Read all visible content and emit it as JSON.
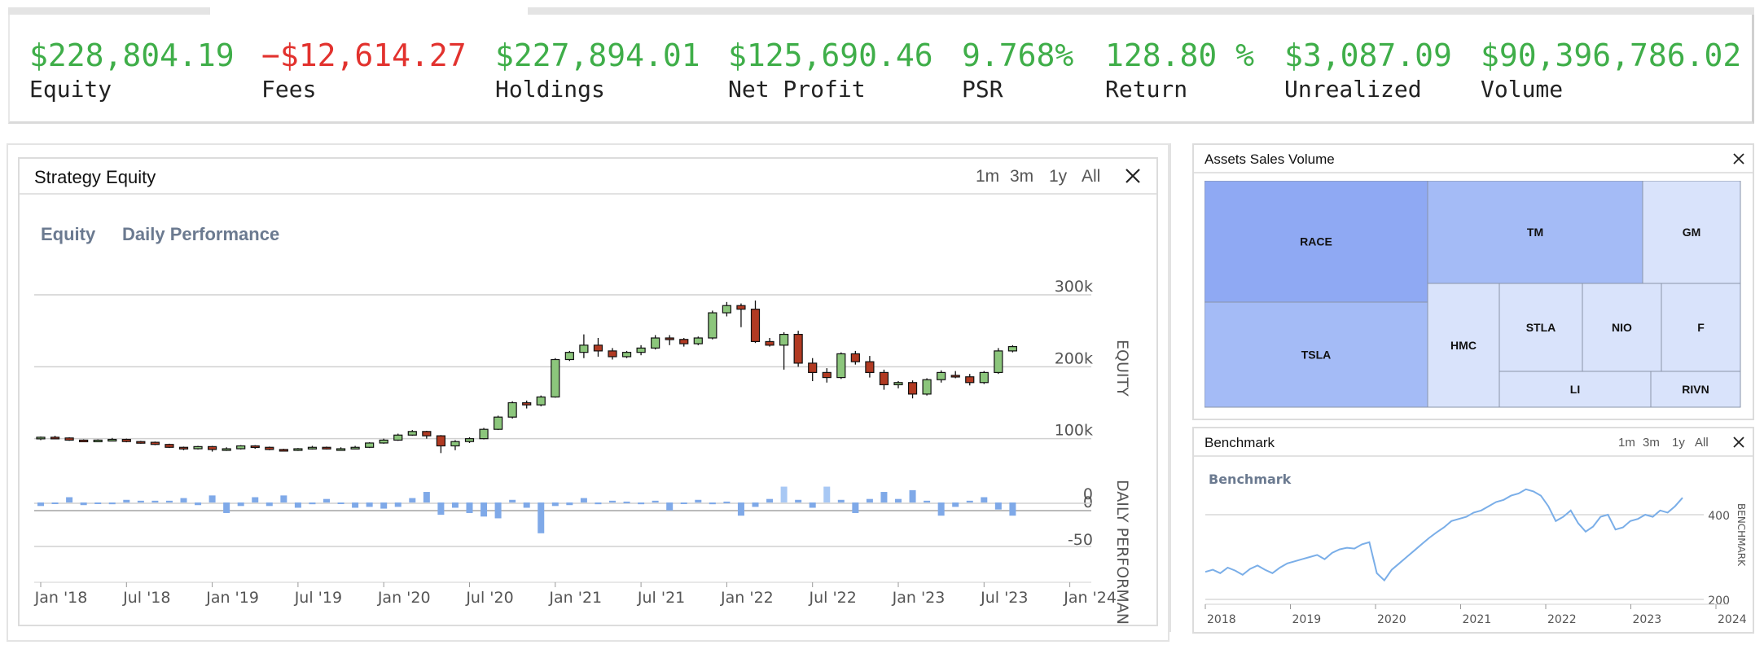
{
  "stats": [
    {
      "value": "$228,804.19",
      "label": "Equity",
      "negative": false
    },
    {
      "value": "−$12,614.27",
      "label": "Fees",
      "negative": true
    },
    {
      "value": "$227,894.01",
      "label": "Holdings",
      "negative": false
    },
    {
      "value": "$125,690.46",
      "label": "Net Profit",
      "negative": false
    },
    {
      "value": "9.768%",
      "label": "PSR",
      "negative": false
    },
    {
      "value": "128.80 %",
      "label": "Return",
      "negative": false
    },
    {
      "value": "$3,087.09",
      "label": "Unrealized",
      "negative": false
    },
    {
      "value": "$90,396,786.02",
      "label": "Volume",
      "negative": false
    }
  ],
  "equity_panel": {
    "title": "Strategy Equity",
    "ranges": [
      "1m",
      "3m",
      "1y",
      "All"
    ],
    "tabs": [
      "Equity",
      "Daily Performance"
    ]
  },
  "assets_panel": {
    "title": "Assets Sales Volume",
    "tiles": [
      "RACE",
      "TSLA",
      "TM",
      "GM",
      "HMC",
      "STLA",
      "NIO",
      "F",
      "LI",
      "RIVN"
    ]
  },
  "benchmark_panel": {
    "title": "Benchmark",
    "ranges": [
      "1m",
      "3m",
      "1y",
      "All"
    ]
  },
  "colors": {
    "positive": "#3fae49",
    "negative": "#e2322e",
    "candle_up": "#8cc67c",
    "candle_down": "#b13a22",
    "bar": "#7fa9e8",
    "bar_light": "#a8c8f4",
    "treemap_dark": "#8fa9f3",
    "treemap_mid": "#a4bbf6",
    "treemap_light": "#d9e3fb",
    "line": "#7aaee8"
  },
  "chart_data": [
    {
      "type": "candlestick",
      "title": "",
      "ylabel": "EQUITY",
      "ylim": [
        0,
        300000
      ],
      "yticks": [
        "300k",
        "200k",
        "100k",
        "0"
      ],
      "xticks": [
        "Jan '18",
        "Jul '18",
        "Jan '19",
        "Jul '19",
        "Jan '20",
        "Jul '20",
        "Jan '21",
        "Jul '21",
        "Jan '22",
        "Jul '22",
        "Jan '23",
        "Jul '23",
        "Jan '24"
      ],
      "x_start": "2017-12",
      "candles": [
        [
          100000,
          102000,
          98000,
          103000
        ],
        [
          102000,
          101000,
          100000,
          104000
        ],
        [
          101000,
          98000,
          97000,
          102000
        ],
        [
          98000,
          97000,
          96000,
          99000
        ],
        [
          97000,
          98000,
          96000,
          99000
        ],
        [
          98000,
          99000,
          97000,
          101000
        ],
        [
          99000,
          96000,
          95000,
          100000
        ],
        [
          96000,
          95000,
          93000,
          97000
        ],
        [
          95000,
          92000,
          91000,
          96000
        ],
        [
          92000,
          88000,
          87000,
          93000
        ],
        [
          88000,
          86000,
          84000,
          89000
        ],
        [
          86000,
          89000,
          85000,
          90000
        ],
        [
          89000,
          85000,
          82000,
          90000
        ],
        [
          85000,
          86000,
          83000,
          88000
        ],
        [
          86000,
          90000,
          85000,
          91000
        ],
        [
          90000,
          88000,
          86000,
          91000
        ],
        [
          88000,
          85000,
          84000,
          89000
        ],
        [
          85000,
          84000,
          83000,
          86000
        ],
        [
          84000,
          86000,
          83000,
          87000
        ],
        [
          86000,
          88000,
          85000,
          90000
        ],
        [
          88000,
          86000,
          85000,
          89000
        ],
        [
          86000,
          86000,
          85000,
          88000
        ],
        [
          86000,
          88000,
          86000,
          90000
        ],
        [
          88000,
          94000,
          87000,
          95000
        ],
        [
          94000,
          98000,
          93000,
          100000
        ],
        [
          98000,
          105000,
          97000,
          107000
        ],
        [
          105000,
          110000,
          104000,
          112000
        ],
        [
          110000,
          104000,
          100000,
          111000
        ],
        [
          104000,
          90000,
          80000,
          105000
        ],
        [
          90000,
          96000,
          84000,
          98000
        ],
        [
          96000,
          100000,
          94000,
          102000
        ],
        [
          100000,
          113000,
          99000,
          115000
        ],
        [
          113000,
          130000,
          112000,
          132000
        ],
        [
          130000,
          150000,
          128000,
          152000
        ],
        [
          150000,
          147000,
          142000,
          153000
        ],
        [
          147000,
          158000,
          145000,
          160000
        ],
        [
          158000,
          210000,
          157000,
          212000
        ],
        [
          210000,
          220000,
          208000,
          222000
        ],
        [
          220000,
          230000,
          212000,
          245000
        ],
        [
          230000,
          222000,
          214000,
          240000
        ],
        [
          222000,
          214000,
          210000,
          226000
        ],
        [
          214000,
          220000,
          212000,
          222000
        ],
        [
          220000,
          226000,
          216000,
          230000
        ],
        [
          226000,
          240000,
          224000,
          244000
        ],
        [
          240000,
          238000,
          230000,
          244000
        ],
        [
          238000,
          232000,
          228000,
          240000
        ],
        [
          232000,
          240000,
          230000,
          242000
        ],
        [
          240000,
          275000,
          238000,
          278000
        ],
        [
          275000,
          285000,
          270000,
          290000
        ],
        [
          285000,
          280000,
          255000,
          288000
        ],
        [
          280000,
          235000,
          233000,
          292000
        ],
        [
          235000,
          230000,
          228000,
          240000
        ],
        [
          230000,
          245000,
          196000,
          248000
        ],
        [
          245000,
          205000,
          200000,
          250000
        ],
        [
          205000,
          192000,
          180000,
          212000
        ],
        [
          192000,
          185000,
          178000,
          198000
        ],
        [
          185000,
          218000,
          183000,
          220000
        ],
        [
          218000,
          207000,
          203000,
          222000
        ],
        [
          207000,
          192000,
          185000,
          215000
        ],
        [
          192000,
          175000,
          168000,
          196000
        ],
        [
          175000,
          178000,
          170000,
          180000
        ],
        [
          178000,
          162000,
          156000,
          181000
        ],
        [
          162000,
          182000,
          160000,
          184000
        ],
        [
          182000,
          192000,
          178000,
          195000
        ],
        [
          188000,
          186000,
          184000,
          194000
        ],
        [
          186000,
          178000,
          174000,
          190000
        ],
        [
          178000,
          192000,
          176000,
          194000
        ],
        [
          192000,
          222000,
          190000,
          226000
        ],
        [
          222000,
          228000,
          220000,
          230000
        ]
      ],
      "daily_performance": {
        "ylabel": "DAILY PERFORMANCE",
        "yticks": [
          "0",
          "-50"
        ],
        "ylim": [
          -50,
          50
        ],
        "values": [
          4,
          0,
          -6,
          3,
          0,
          2,
          -3,
          -2,
          -2,
          -2,
          -5,
          3,
          -8,
          12,
          4,
          -6,
          4,
          -8,
          6,
          2,
          -4,
          0,
          6,
          5,
          7,
          5,
          -5,
          -12,
          14,
          6,
          12,
          16,
          18,
          -3,
          6,
          35,
          4,
          3,
          -5,
          2,
          -2,
          -1,
          2,
          -2,
          9,
          0,
          -3,
          2,
          -1,
          15,
          5,
          -4,
          -18,
          -3,
          6,
          -18,
          -3,
          12,
          -4,
          -12,
          -4,
          -14,
          -2,
          15,
          5,
          -2,
          -6,
          8,
          15
        ]
      }
    },
    {
      "type": "treemap",
      "title": "Assets Sales Volume",
      "tiles": [
        {
          "name": "RACE",
          "value": 18
        },
        {
          "name": "TSLA",
          "value": 17
        },
        {
          "name": "TM",
          "value": 14
        },
        {
          "name": "GM",
          "value": 6
        },
        {
          "name": "HMC",
          "value": 7
        },
        {
          "name": "STLA",
          "value": 6
        },
        {
          "name": "NIO",
          "value": 6
        },
        {
          "name": "F",
          "value": 6
        },
        {
          "name": "LI",
          "value": 9
        },
        {
          "name": "RIVN",
          "value": 4
        }
      ]
    },
    {
      "type": "line",
      "title": "Benchmark",
      "ylabel": "BENCHMARK",
      "yticks": [
        "400",
        "200"
      ],
      "ylim": [
        200,
        500
      ],
      "xticks": [
        "2018",
        "2019",
        "2020",
        "2021",
        "2022",
        "2023",
        "2024"
      ],
      "values": [
        265,
        270,
        262,
        275,
        268,
        258,
        272,
        280,
        270,
        262,
        275,
        285,
        290,
        295,
        300,
        305,
        295,
        310,
        318,
        322,
        320,
        330,
        335,
        262,
        245,
        270,
        285,
        300,
        315,
        330,
        345,
        358,
        370,
        385,
        390,
        395,
        405,
        410,
        420,
        430,
        435,
        445,
        450,
        460,
        455,
        445,
        420,
        385,
        395,
        410,
        380,
        360,
        372,
        395,
        400,
        365,
        370,
        385,
        390,
        400,
        395,
        410,
        405,
        420,
        440
      ]
    }
  ]
}
